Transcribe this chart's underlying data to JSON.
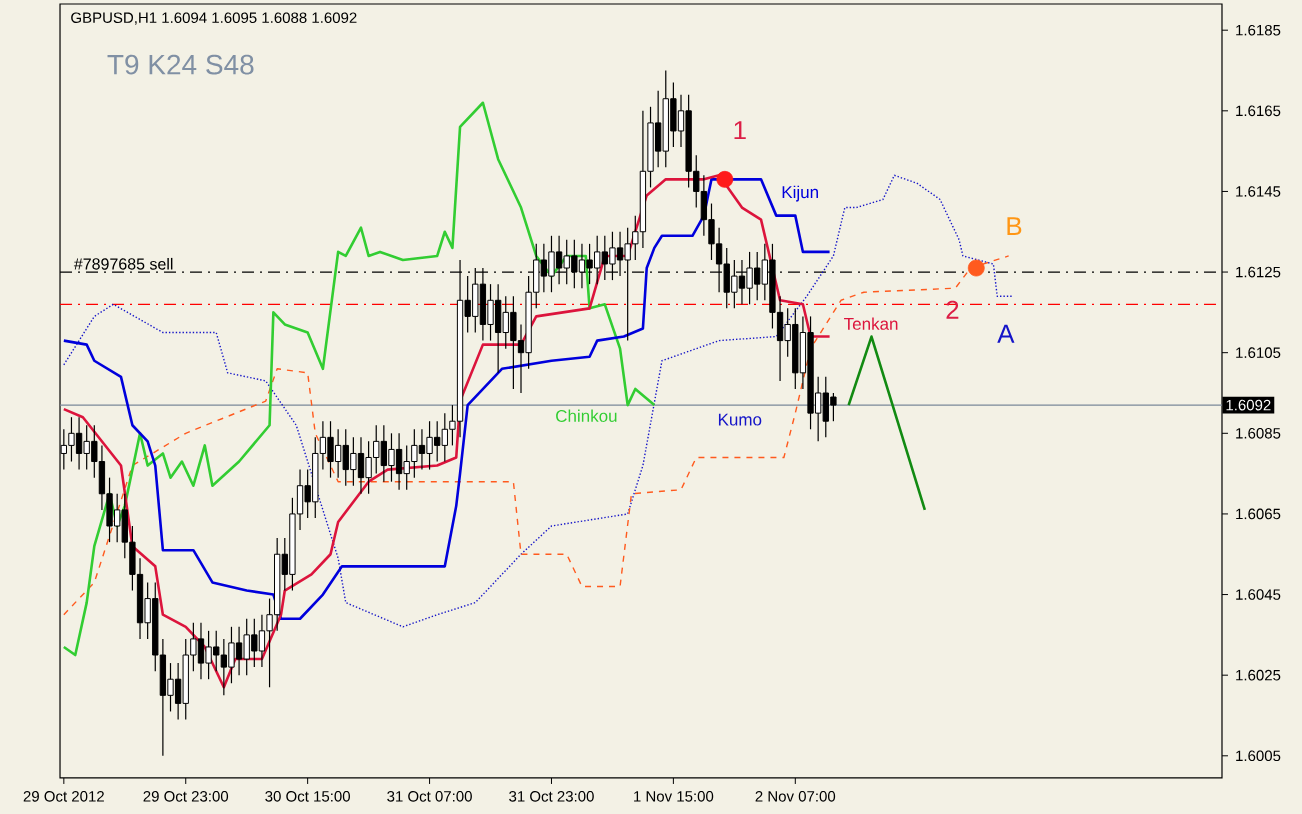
{
  "chart_data": {
    "type": "candlestick",
    "title": "GBPUSD,H1  1.6094 1.6095 1.6088 1.6092",
    "x": [
      "2012-10-29T07:00",
      "2012-10-29T08:00",
      "2012-10-29T09:00",
      "2012-10-29T10:00",
      "2012-10-29T11:00",
      "2012-10-29T12:00",
      "2012-10-29T13:00",
      "2012-10-29T14:00",
      "2012-10-29T15:00",
      "2012-10-29T16:00",
      "2012-10-29T17:00",
      "2012-10-29T18:00",
      "2012-10-29T19:00",
      "2012-10-29T20:00",
      "2012-10-29T21:00",
      "2012-10-29T22:00",
      "2012-10-29T23:00",
      "2012-10-30T00:00",
      "2012-10-30T01:00",
      "2012-10-30T02:00",
      "2012-10-30T03:00",
      "2012-10-30T04:00",
      "2012-10-30T05:00",
      "2012-10-30T06:00",
      "2012-10-30T07:00",
      "2012-10-30T08:00",
      "2012-10-30T09:00",
      "2012-10-30T10:00",
      "2012-10-30T11:00",
      "2012-10-30T12:00",
      "2012-10-30T13:00",
      "2012-10-30T14:00",
      "2012-10-30T15:00",
      "2012-10-30T16:00",
      "2012-10-30T17:00",
      "2012-10-30T18:00",
      "2012-10-30T19:00",
      "2012-10-30T20:00",
      "2012-10-30T21:00",
      "2012-10-30T22:00",
      "2012-10-30T23:00",
      "2012-10-31T00:00",
      "2012-10-31T01:00",
      "2012-10-31T02:00",
      "2012-10-31T03:00",
      "2012-10-31T04:00",
      "2012-10-31T05:00",
      "2012-10-31T06:00",
      "2012-10-31T07:00",
      "2012-10-31T08:00",
      "2012-10-31T09:00",
      "2012-10-31T10:00",
      "2012-10-31T11:00",
      "2012-10-31T12:00",
      "2012-10-31T13:00",
      "2012-10-31T14:00",
      "2012-10-31T15:00",
      "2012-10-31T16:00",
      "2012-10-31T17:00",
      "2012-10-31T18:00",
      "2012-10-31T19:00",
      "2012-10-31T20:00",
      "2012-10-31T21:00",
      "2012-10-31T22:00",
      "2012-10-31T23:00",
      "2012-11-01T00:00",
      "2012-11-01T01:00",
      "2012-11-01T02:00",
      "2012-11-01T03:00",
      "2012-11-01T04:00",
      "2012-11-01T05:00",
      "2012-11-01T06:00",
      "2012-11-01T07:00",
      "2012-11-01T08:00",
      "2012-11-01T09:00",
      "2012-11-01T10:00",
      "2012-11-01T11:00",
      "2012-11-01T12:00",
      "2012-11-01T13:00",
      "2012-11-01T14:00",
      "2012-11-01T15:00",
      "2012-11-01T16:00",
      "2012-11-01T17:00",
      "2012-11-01T18:00",
      "2012-11-01T19:00",
      "2012-11-01T20:00",
      "2012-11-01T21:00",
      "2012-11-01T22:00",
      "2012-11-01T23:00",
      "2012-11-02T00:00",
      "2012-11-02T01:00",
      "2012-11-02T02:00",
      "2012-11-02T03:00",
      "2012-11-02T04:00",
      "2012-11-02T05:00",
      "2012-11-02T06:00",
      "2012-11-02T07:00",
      "2012-11-02T08:00",
      "2012-11-02T09:00",
      "2012-11-02T10:00",
      "2012-11-02T11:00",
      "2012-11-02T12:00"
    ],
    "ohlc": [
      [
        1.608,
        1.6086,
        1.6076,
        1.6082
      ],
      [
        1.6082,
        1.6089,
        1.6078,
        1.6085
      ],
      [
        1.6085,
        1.6089,
        1.6076,
        1.608
      ],
      [
        1.608,
        1.6087,
        1.6076,
        1.6083
      ],
      [
        1.6083,
        1.6087,
        1.6074,
        1.6078
      ],
      [
        1.6078,
        1.6082,
        1.6066,
        1.607
      ],
      [
        1.607,
        1.6074,
        1.6058,
        1.6062
      ],
      [
        1.6062,
        1.607,
        1.6058,
        1.6066
      ],
      [
        1.6066,
        1.607,
        1.6054,
        1.6058
      ],
      [
        1.6058,
        1.6062,
        1.6046,
        1.605
      ],
      [
        1.605,
        1.6054,
        1.6034,
        1.6038
      ],
      [
        1.6038,
        1.6048,
        1.6034,
        1.6044
      ],
      [
        1.6044,
        1.6048,
        1.6026,
        1.603
      ],
      [
        1.603,
        1.6034,
        1.6005,
        1.602
      ],
      [
        1.602,
        1.6028,
        1.6016,
        1.6024
      ],
      [
        1.6024,
        1.6028,
        1.6014,
        1.6018
      ],
      [
        1.6018,
        1.6034,
        1.6014,
        1.603
      ],
      [
        1.603,
        1.6038,
        1.6026,
        1.6034
      ],
      [
        1.6034,
        1.6038,
        1.6024,
        1.6028
      ],
      [
        1.6028,
        1.6036,
        1.6024,
        1.6032
      ],
      [
        1.6032,
        1.6036,
        1.6026,
        1.603
      ],
      [
        1.603,
        1.6034,
        1.602,
        1.6027
      ],
      [
        1.6027,
        1.6037,
        1.6023,
        1.6033
      ],
      [
        1.6033,
        1.6037,
        1.6025,
        1.6029
      ],
      [
        1.6029,
        1.6039,
        1.6025,
        1.6035
      ],
      [
        1.6035,
        1.6039,
        1.6027,
        1.6031
      ],
      [
        1.6031,
        1.604,
        1.6027,
        1.6036
      ],
      [
        1.6036,
        1.6044,
        1.6022,
        1.604
      ],
      [
        1.604,
        1.6059,
        1.6036,
        1.6055
      ],
      [
        1.6055,
        1.6059,
        1.6046,
        1.605
      ],
      [
        1.605,
        1.6069,
        1.6046,
        1.6065
      ],
      [
        1.6065,
        1.6076,
        1.6061,
        1.6072
      ],
      [
        1.6072,
        1.6076,
        1.6064,
        1.6068
      ],
      [
        1.6068,
        1.6084,
        1.6064,
        1.608
      ],
      [
        1.608,
        1.6088,
        1.6076,
        1.6084
      ],
      [
        1.6084,
        1.6088,
        1.6074,
        1.6078
      ],
      [
        1.6078,
        1.6086,
        1.6074,
        1.6082
      ],
      [
        1.6082,
        1.6086,
        1.6072,
        1.6076
      ],
      [
        1.6076,
        1.6084,
        1.6072,
        1.608
      ],
      [
        1.608,
        1.6084,
        1.607,
        1.6074
      ],
      [
        1.6074,
        1.6083,
        1.607,
        1.6079
      ],
      [
        1.6079,
        1.6087,
        1.6075,
        1.6083
      ],
      [
        1.6083,
        1.6087,
        1.6073,
        1.6077
      ],
      [
        1.6077,
        1.6085,
        1.6073,
        1.6081
      ],
      [
        1.6081,
        1.6085,
        1.6071,
        1.6075
      ],
      [
        1.6075,
        1.6082,
        1.6071,
        1.6078
      ],
      [
        1.6078,
        1.6086,
        1.6074,
        1.6082
      ],
      [
        1.6082,
        1.6086,
        1.6076,
        1.608
      ],
      [
        1.608,
        1.6088,
        1.6076,
        1.6084
      ],
      [
        1.6084,
        1.6088,
        1.6078,
        1.6082
      ],
      [
        1.6082,
        1.609,
        1.6078,
        1.6086
      ],
      [
        1.6086,
        1.6092,
        1.6082,
        1.6088
      ],
      [
        1.6088,
        1.6128,
        1.6084,
        1.6118
      ],
      [
        1.6118,
        1.6124,
        1.611,
        1.6114
      ],
      [
        1.6114,
        1.6126,
        1.611,
        1.6122
      ],
      [
        1.6122,
        1.6126,
        1.6108,
        1.6112
      ],
      [
        1.6112,
        1.6122,
        1.6108,
        1.6118
      ],
      [
        1.6118,
        1.6122,
        1.61,
        1.611
      ],
      [
        1.611,
        1.6119,
        1.6106,
        1.6115
      ],
      [
        1.6115,
        1.6119,
        1.6096,
        1.6108
      ],
      [
        1.6108,
        1.6112,
        1.6095,
        1.6105
      ],
      [
        1.6105,
        1.6124,
        1.6101,
        1.612
      ],
      [
        1.612,
        1.6132,
        1.6116,
        1.6128
      ],
      [
        1.6128,
        1.6132,
        1.612,
        1.6124
      ],
      [
        1.6124,
        1.6134,
        1.612,
        1.613
      ],
      [
        1.613,
        1.6134,
        1.6122,
        1.6126
      ],
      [
        1.6126,
        1.6133,
        1.6122,
        1.6129
      ],
      [
        1.6129,
        1.6133,
        1.6121,
        1.6125
      ],
      [
        1.6125,
        1.6132,
        1.6121,
        1.6128
      ],
      [
        1.6128,
        1.6132,
        1.6122,
        1.6126
      ],
      [
        1.6126,
        1.6134,
        1.6122,
        1.613
      ],
      [
        1.613,
        1.6134,
        1.6123,
        1.6127
      ],
      [
        1.6127,
        1.6135,
        1.6123,
        1.6131
      ],
      [
        1.6131,
        1.6135,
        1.6124,
        1.6128
      ],
      [
        1.6128,
        1.6136,
        1.6108,
        1.6132
      ],
      [
        1.6132,
        1.6139,
        1.6128,
        1.6135
      ],
      [
        1.6135,
        1.6165,
        1.6131,
        1.615
      ],
      [
        1.615,
        1.6166,
        1.6146,
        1.6162
      ],
      [
        1.6162,
        1.617,
        1.6151,
        1.6155
      ],
      [
        1.6155,
        1.6175,
        1.6151,
        1.6168
      ],
      [
        1.6168,
        1.6172,
        1.6156,
        1.616
      ],
      [
        1.616,
        1.6169,
        1.6156,
        1.6165
      ],
      [
        1.6165,
        1.6169,
        1.6146,
        1.615
      ],
      [
        1.615,
        1.6154,
        1.6141,
        1.6145
      ],
      [
        1.6145,
        1.6149,
        1.6134,
        1.6138
      ],
      [
        1.6138,
        1.6142,
        1.6128,
        1.6132
      ],
      [
        1.6132,
        1.6136,
        1.612,
        1.6127
      ],
      [
        1.6127,
        1.6131,
        1.6116,
        1.612
      ],
      [
        1.612,
        1.6128,
        1.6116,
        1.6124
      ],
      [
        1.6124,
        1.6128,
        1.6117,
        1.6121
      ],
      [
        1.6121,
        1.613,
        1.6117,
        1.6126
      ],
      [
        1.6126,
        1.613,
        1.6118,
        1.6122
      ],
      [
        1.6122,
        1.6132,
        1.6118,
        1.6128
      ],
      [
        1.6128,
        1.6132,
        1.6111,
        1.6115
      ],
      [
        1.6115,
        1.6119,
        1.6098,
        1.6108
      ],
      [
        1.6108,
        1.6116,
        1.6104,
        1.6112
      ],
      [
        1.6112,
        1.6116,
        1.6096,
        1.61
      ],
      [
        1.61,
        1.6114,
        1.6096,
        1.611
      ],
      [
        1.611,
        1.6114,
        1.6086,
        1.609
      ],
      [
        1.609,
        1.6099,
        1.6083,
        1.6095
      ],
      [
        1.6095,
        1.6099,
        1.6084,
        1.6088
      ],
      [
        1.6094,
        1.6095,
        1.6088,
        1.6092
      ]
    ],
    "xlim": [
      "2012-10-29T06:30",
      "2012-11-04T15:00"
    ],
    "ylim": [
      1.59995,
      1.61915
    ],
    "xticks": [
      {
        "value": "2012-10-29T07:00",
        "label": "29 Oct 2012"
      },
      {
        "value": "2012-10-29T23:00",
        "label": "29 Oct 23:00"
      },
      {
        "value": "2012-10-30T15:00",
        "label": "30 Oct 15:00"
      },
      {
        "value": "2012-10-31T07:00",
        "label": "31 Oct 07:00"
      },
      {
        "value": "2012-10-31T23:00",
        "label": "31 Oct 23:00"
      },
      {
        "value": "2012-11-01T15:00",
        "label": "1 Nov 15:00"
      },
      {
        "value": "2012-11-02T07:00",
        "label": "2 Nov 07:00"
      }
    ],
    "yticks": [
      1.6005,
      1.6025,
      1.6045,
      1.6065,
      1.6085,
      1.6105,
      1.6125,
      1.6145,
      1.6165,
      1.6185
    ],
    "series": [
      {
        "type": "line",
        "name": "Kumo",
        "color": "#1515c8",
        "line_style": "dotted",
        "x": [
          "2012-10-29T07:00",
          "2012-10-29T11:00",
          "2012-10-29T13:30",
          "2012-10-29T20:00",
          "2012-10-30T03:00",
          "2012-10-30T04:30",
          "2012-10-30T09:30",
          "2012-10-30T13:30",
          "2012-10-30T15:00",
          "2012-10-30T19:00",
          "2012-10-30T20:00",
          "2012-10-31T03:30",
          "2012-10-31T08:00",
          "2012-10-31T13:00",
          "2012-10-31T19:00",
          "2012-10-31T23:00",
          "2012-11-01T09:00",
          "2012-11-01T11:00",
          "2012-11-01T13:30",
          "2012-11-01T21:00",
          "2012-11-02T04:30",
          "2012-11-02T08:30",
          "2012-11-02T12:00",
          "2012-11-02T13:30",
          "2012-11-02T15:00",
          "2012-11-02T18:30",
          "2012-11-02T20:00",
          "2012-11-02T23:00",
          "2012-11-03T02:00",
          "2012-11-03T04:30",
          "2012-11-03T05:00",
          "2012-11-03T09:00",
          "2012-11-03T09:30",
          "2012-11-03T11:30"
        ],
        "values": [
          1.6102,
          1.6114,
          1.6117,
          1.611,
          1.611,
          1.61,
          1.6098,
          1.6087,
          1.6078,
          1.6054,
          1.6043,
          1.6037,
          1.604,
          1.6043,
          1.6055,
          1.6062,
          1.6065,
          1.6077,
          1.6103,
          1.6108,
          1.6109,
          1.6119,
          1.6129,
          1.6141,
          1.6141,
          1.6143,
          1.6149,
          1.6147,
          1.6143,
          1.6133,
          1.6129,
          1.6127,
          1.6119,
          1.6119
        ]
      },
      {
        "type": "line",
        "color": "#ff5a1e",
        "line_style": "dashed",
        "x": [
          "2012-10-29T07:00",
          "2012-10-29T11:00",
          "2012-10-29T16:00",
          "2012-10-29T23:00",
          "2012-10-30T09:30",
          "2012-10-30T11:00",
          "2012-10-30T15:00",
          "2012-10-30T16:00",
          "2012-10-30T19:00",
          "2012-10-31T11:30",
          "2012-10-31T18:00",
          "2012-10-31T19:00",
          "2012-11-01T01:00",
          "2012-11-01T03:00",
          "2012-11-01T08:00",
          "2012-11-01T09:30",
          "2012-11-01T16:00",
          "2012-11-01T18:00",
          "2012-11-02T05:30",
          "2012-11-02T07:00",
          "2012-11-02T09:00",
          "2012-11-02T13:00",
          "2012-11-02T16:00",
          "2012-11-03T04:00",
          "2012-11-03T06:00",
          "2012-11-03T11:00"
        ],
        "values": [
          1.604,
          1.6048,
          1.6077,
          1.6085,
          1.6093,
          1.6101,
          1.61,
          1.6085,
          1.6073,
          1.6073,
          1.6073,
          1.6055,
          1.6055,
          1.6047,
          1.6047,
          1.607,
          1.6071,
          1.6079,
          1.6079,
          1.609,
          1.6106,
          1.6118,
          1.612,
          1.6121,
          1.6126,
          1.6129
        ]
      },
      {
        "type": "line",
        "name": "Chinkou",
        "color": "#32cd32",
        "line_style": "solid",
        "x": [
          "2012-10-29T07:00",
          "2012-10-29T08:30",
          "2012-10-29T10:00",
          "2012-10-29T11:00",
          "2012-10-29T13:00",
          "2012-10-29T14:00",
          "2012-10-29T15:00",
          "2012-10-29T17:00",
          "2012-10-29T18:00",
          "2012-10-29T20:00",
          "2012-10-29T21:00",
          "2012-10-29T22:30",
          "2012-10-30T00:00",
          "2012-10-30T01:30",
          "2012-10-30T02:30",
          "2012-10-30T06:00",
          "2012-10-30T10:00",
          "2012-10-30T10:30",
          "2012-10-30T12:00",
          "2012-10-30T15:00",
          "2012-10-30T17:00",
          "2012-10-30T19:00",
          "2012-10-30T20:00",
          "2012-10-30T22:00",
          "2012-10-30T23:00",
          "2012-10-31T00:30",
          "2012-10-31T03:30",
          "2012-10-31T08:00",
          "2012-10-31T09:00",
          "2012-10-31T10:00",
          "2012-10-31T11:00",
          "2012-10-31T14:00",
          "2012-10-31T16:00",
          "2012-10-31T19:00",
          "2012-10-31T21:00",
          "2012-10-31T23:00",
          "2012-11-01T01:00",
          "2012-11-01T03:30",
          "2012-11-01T04:00",
          "2012-11-01T06:00",
          "2012-11-01T08:00",
          "2012-11-01T09:00",
          "2012-11-01T10:00",
          "2012-11-01T12:30"
        ],
        "values": [
          1.6032,
          1.603,
          1.6043,
          1.6057,
          1.607,
          1.6062,
          1.6067,
          1.6085,
          1.6077,
          1.608,
          1.6074,
          1.6078,
          1.6072,
          1.6082,
          1.6072,
          1.6078,
          1.6087,
          1.6115,
          1.6112,
          1.611,
          1.6101,
          1.613,
          1.6129,
          1.6136,
          1.6129,
          1.613,
          1.6128,
          1.6129,
          1.6135,
          1.6131,
          1.6161,
          1.6167,
          1.6153,
          1.6141,
          1.6129,
          1.6124,
          1.6129,
          1.6129,
          1.6116,
          1.6117,
          1.6106,
          1.6092,
          1.6096,
          1.6092
        ]
      },
      {
        "type": "line",
        "name": "Kijun",
        "color": "#0000dc",
        "line_style": "solid",
        "x": [
          "2012-10-29T07:00",
          "2012-10-29T10:00",
          "2012-10-29T11:00",
          "2012-10-29T14:30",
          "2012-10-29T16:00",
          "2012-10-29T18:00",
          "2012-10-29T19:00",
          "2012-10-29T20:00",
          "2012-10-30T00:00",
          "2012-10-30T02:30",
          "2012-10-30T07:00",
          "2012-10-30T10:30",
          "2012-10-30T11:30",
          "2012-10-30T14:00",
          "2012-10-30T17:00",
          "2012-10-30T19:30",
          "2012-10-31T09:00",
          "2012-10-31T10:30",
          "2012-10-31T11:00",
          "2012-10-31T12:00",
          "2012-10-31T16:30",
          "2012-10-31T23:00",
          "2012-11-01T04:00",
          "2012-11-01T05:00",
          "2012-11-01T08:30",
          "2012-11-01T11:00",
          "2012-11-01T11:30",
          "2012-11-01T12:30",
          "2012-11-01T13:30",
          "2012-11-01T17:30",
          "2012-11-01T19:00",
          "2012-11-01T20:00",
          "2012-11-02T02:30",
          "2012-11-02T04:30",
          "2012-11-02T07:00",
          "2012-11-02T08:00",
          "2012-11-02T11:30"
        ],
        "values": [
          1.6108,
          1.6107,
          1.6103,
          1.6099,
          1.6087,
          1.6083,
          1.6077,
          1.6056,
          1.6056,
          1.6048,
          1.6046,
          1.6045,
          1.6039,
          1.6039,
          1.6045,
          1.6052,
          1.6052,
          1.6067,
          1.6075,
          1.6092,
          1.6101,
          1.6103,
          1.6104,
          1.6108,
          1.6109,
          1.6111,
          1.6126,
          1.6131,
          1.6134,
          1.6134,
          1.6139,
          1.6148,
          1.6148,
          1.6139,
          1.6139,
          1.613,
          1.613
        ]
      },
      {
        "type": "line",
        "name": "Tenkan",
        "color": "#dc143c",
        "line_style": "solid",
        "x": [
          "2012-10-29T07:00",
          "2012-10-29T09:30",
          "2012-10-29T14:30",
          "2012-10-29T16:00",
          "2012-10-29T19:00",
          "2012-10-29T20:00",
          "2012-10-29T23:00",
          "2012-10-30T01:30",
          "2012-10-30T04:00",
          "2012-10-30T05:30",
          "2012-10-30T09:00",
          "2012-10-30T11:30",
          "2012-10-30T12:00",
          "2012-10-30T15:30",
          "2012-10-30T18:00",
          "2012-10-30T19:00",
          "2012-10-30T23:00",
          "2012-10-31T01:30",
          "2012-10-31T08:00",
          "2012-10-31T10:30",
          "2012-10-31T11:00",
          "2012-10-31T14:00",
          "2012-10-31T19:00",
          "2012-10-31T21:00",
          "2012-11-01T04:00",
          "2012-11-01T06:00",
          "2012-11-01T09:00",
          "2012-11-01T11:30",
          "2012-11-01T14:00",
          "2012-11-01T19:00",
          "2012-11-01T21:00",
          "2012-11-02T00:00",
          "2012-11-02T02:30",
          "2012-11-02T05:00",
          "2012-11-02T08:00",
          "2012-11-02T09:00",
          "2012-11-02T11:30"
        ],
        "values": [
          1.6091,
          1.6089,
          1.6077,
          1.6057,
          1.6052,
          1.604,
          1.6037,
          1.6032,
          1.6022,
          1.6029,
          1.6029,
          1.604,
          1.6046,
          1.605,
          1.6055,
          1.6063,
          1.6073,
          1.6076,
          1.6077,
          1.6079,
          1.6093,
          1.6107,
          1.6107,
          1.6114,
          1.6116,
          1.6129,
          1.6129,
          1.6144,
          1.6148,
          1.6148,
          1.6149,
          1.6141,
          1.6138,
          1.6118,
          1.6117,
          1.6109,
          1.6109
        ]
      },
      {
        "type": "line",
        "color": "#128a12",
        "line_style": "solid",
        "x": [
          "2012-11-02T14:00",
          "2012-11-02T17:00",
          "2012-11-03T00:00"
        ],
        "values": [
          1.6092,
          1.6109,
          1.6066
        ]
      },
      {
        "type": "scatter",
        "marker": "circle",
        "x": [
          "2012-11-01T21:45",
          "2012-11-03T06:45"
        ],
        "values": [
          1.6148,
          1.6126
        ],
        "colors": [
          "#ff1a1a",
          "#ff5a1e"
        ]
      }
    ],
    "ref_lines": [
      {
        "axis": "y",
        "value": 1.6125,
        "label": "#7897685 sell",
        "color": "#000000",
        "line_style": "dashed"
      },
      {
        "axis": "y",
        "value": 1.6117,
        "color": "#ff0000",
        "line_style": "dashed"
      },
      {
        "axis": "y",
        "value": 1.6092,
        "label": "1.6092",
        "color": "#7a8899",
        "line_style": "solid"
      }
    ],
    "annotations": [
      "T9 K24 S48",
      "1",
      "2",
      "A",
      "B"
    ]
  }
}
